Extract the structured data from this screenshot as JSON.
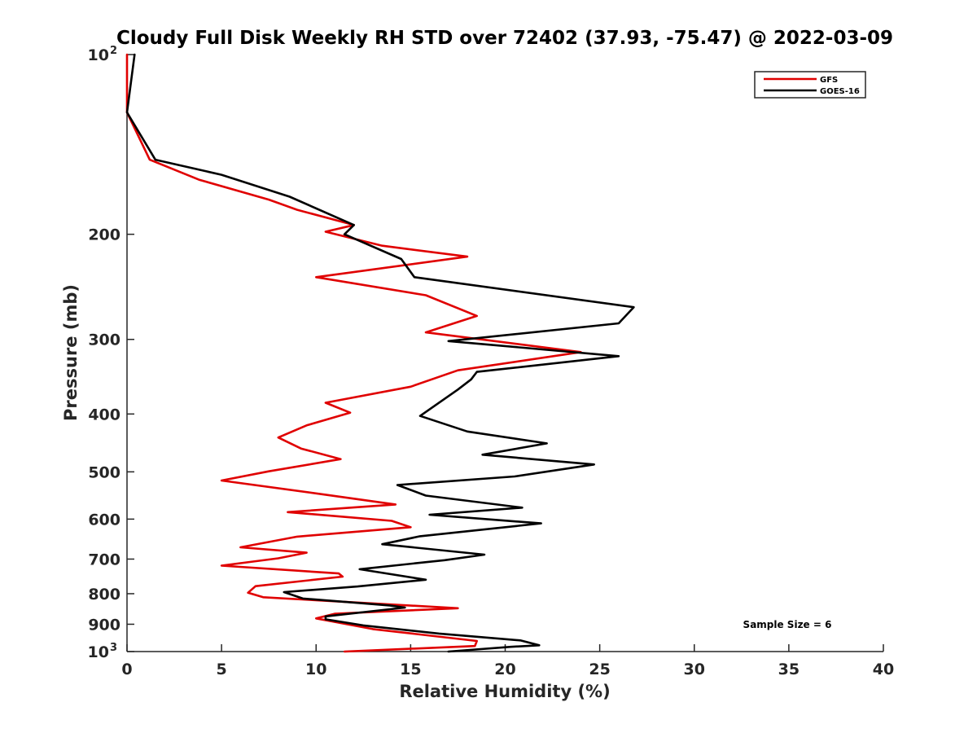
{
  "chart_data": {
    "type": "line",
    "title": "Cloudy Full Disk Weekly RH STD over 72402 (37.93, -75.47) @ 2022-03-09",
    "xlabel": "Relative Humidity (%)",
    "ylabel": "Pressure (mb)",
    "xlim": [
      0,
      40
    ],
    "ylim": [
      100,
      1000
    ],
    "yscale": "log",
    "y_reversed": true,
    "grid": false,
    "legend_position": "top-right",
    "xticks": [
      0,
      5,
      10,
      15,
      20,
      25,
      30,
      35,
      40
    ],
    "yticks": [
      {
        "value": 100,
        "base": "10",
        "exp": "2"
      },
      {
        "value": 200,
        "label": "200"
      },
      {
        "value": 300,
        "label": "300"
      },
      {
        "value": 400,
        "label": "400"
      },
      {
        "value": 500,
        "label": "500"
      },
      {
        "value": 600,
        "label": "600"
      },
      {
        "value": 700,
        "label": "700"
      },
      {
        "value": 800,
        "label": "800"
      },
      {
        "value": 900,
        "label": "900"
      },
      {
        "value": 1000,
        "base": "10",
        "exp": "3"
      }
    ],
    "annotation": "Sample Size = 6",
    "series": [
      {
        "name": "GFS",
        "color": "#e00000",
        "points": [
          [
            0.0,
            100
          ],
          [
            0.0,
            125
          ],
          [
            1.2,
            150
          ],
          [
            3.8,
            162
          ],
          [
            7.5,
            175
          ],
          [
            9.0,
            182
          ],
          [
            12.0,
            193
          ],
          [
            10.5,
            198
          ],
          [
            13.5,
            209
          ],
          [
            18.0,
            218
          ],
          [
            10.0,
            236
          ],
          [
            15.8,
            253
          ],
          [
            18.5,
            274
          ],
          [
            15.8,
            292
          ],
          [
            24.0,
            315
          ],
          [
            17.5,
            338
          ],
          [
            15.0,
            360
          ],
          [
            10.5,
            383
          ],
          [
            11.8,
            398
          ],
          [
            9.5,
            418
          ],
          [
            8.0,
            438
          ],
          [
            9.2,
            457
          ],
          [
            11.3,
            476
          ],
          [
            7.5,
            499
          ],
          [
            5.0,
            517
          ],
          [
            10.5,
            546
          ],
          [
            14.2,
            567
          ],
          [
            8.5,
            584
          ],
          [
            14.0,
            604
          ],
          [
            15.0,
            619
          ],
          [
            9.0,
            642
          ],
          [
            6.0,
            669
          ],
          [
            9.5,
            683
          ],
          [
            8.0,
            698
          ],
          [
            5.0,
            718
          ],
          [
            11.2,
            740
          ],
          [
            11.4,
            749
          ],
          [
            6.8,
            777
          ],
          [
            6.4,
            797
          ],
          [
            7.2,
            811
          ],
          [
            17.5,
            846
          ],
          [
            11.0,
            864
          ],
          [
            10.0,
            880
          ],
          [
            13.0,
            917
          ],
          [
            18.5,
            960
          ],
          [
            18.4,
            979
          ],
          [
            11.5,
            1000
          ]
        ]
      },
      {
        "name": "GOES-16",
        "color": "#000000",
        "points": [
          [
            0.4,
            100
          ],
          [
            0.0,
            125
          ],
          [
            1.5,
            150
          ],
          [
            5.0,
            159
          ],
          [
            8.6,
            173
          ],
          [
            12.0,
            193
          ],
          [
            11.5,
            200
          ],
          [
            14.5,
            220
          ],
          [
            15.2,
            236
          ],
          [
            26.8,
            265
          ],
          [
            26.0,
            282
          ],
          [
            17.0,
            302
          ],
          [
            26.0,
            320
          ],
          [
            18.5,
            340
          ],
          [
            18.2,
            350
          ],
          [
            17.5,
            364
          ],
          [
            15.5,
            403
          ],
          [
            18.0,
            428
          ],
          [
            22.2,
            448
          ],
          [
            18.8,
            468
          ],
          [
            24.7,
            486
          ],
          [
            20.5,
            509
          ],
          [
            14.3,
            526
          ],
          [
            15.8,
            548
          ],
          [
            20.9,
            574
          ],
          [
            16.0,
            590
          ],
          [
            21.9,
            610
          ],
          [
            15.5,
            641
          ],
          [
            13.5,
            661
          ],
          [
            18.9,
            688
          ],
          [
            16.8,
            703
          ],
          [
            12.3,
            728
          ],
          [
            15.8,
            758
          ],
          [
            12.2,
            778
          ],
          [
            8.3,
            795
          ],
          [
            9.3,
            815
          ],
          [
            13.9,
            837
          ],
          [
            14.7,
            844
          ],
          [
            10.5,
            873
          ],
          [
            10.5,
            883
          ],
          [
            12.5,
            904
          ],
          [
            16.5,
            933
          ],
          [
            20.8,
            958
          ],
          [
            21.8,
            976
          ],
          [
            20.3,
            982
          ],
          [
            17.0,
            1000
          ]
        ]
      }
    ]
  }
}
